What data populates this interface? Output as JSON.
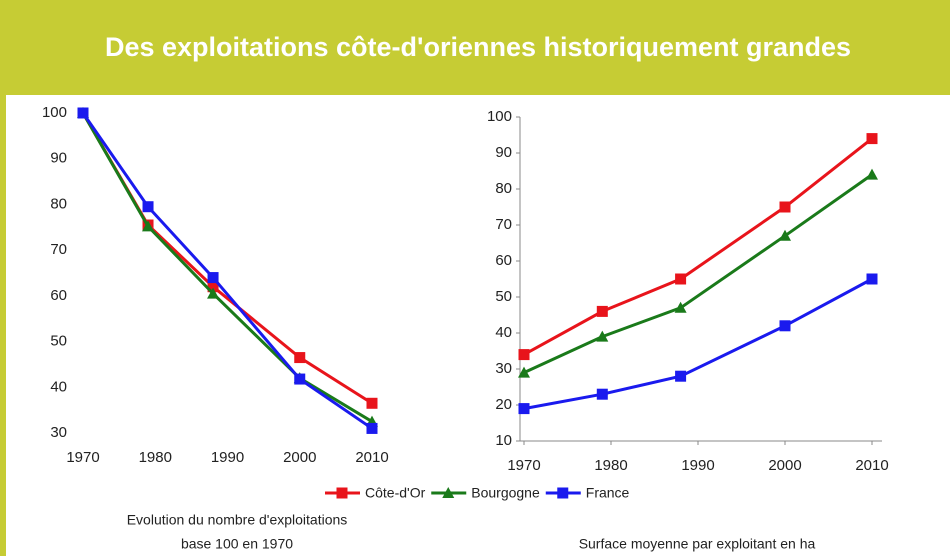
{
  "header": {
    "title": "Des exploitations côte-d'oriennes historiquement grandes"
  },
  "chart_data": [
    {
      "type": "line",
      "caption": [
        "Evolution du nombre d'exploitations",
        "base 100 en 1970"
      ],
      "x": [
        1970,
        1979,
        1988,
        2000,
        2010
      ],
      "xlim": [
        1970,
        2010
      ],
      "xticks": [
        1970,
        1980,
        1990,
        2000,
        2010
      ],
      "ylim": [
        30,
        100
      ],
      "yticks": [
        30,
        40,
        50,
        60,
        70,
        80,
        90,
        100
      ],
      "series": [
        {
          "name": "Côte-d'Or",
          "color": "#e8141b",
          "marker": "square",
          "values": [
            100,
            75.5,
            62,
            46.5,
            36.5
          ]
        },
        {
          "name": "Bourgogne",
          "color": "#1a7a1a",
          "marker": "triangle",
          "values": [
            100,
            75.2,
            60.5,
            42,
            32.5
          ]
        },
        {
          "name": "France",
          "color": "#1a1aee",
          "marker": "square",
          "values": [
            100,
            79.5,
            64,
            41.8,
            31
          ]
        }
      ]
    },
    {
      "type": "line",
      "caption": [
        "Surface moyenne par exploitant en ha"
      ],
      "x": [
        1970,
        1979,
        1988,
        2000,
        2010
      ],
      "xlim": [
        1970,
        2010
      ],
      "xticks": [
        1970,
        1980,
        1990,
        2000,
        2010
      ],
      "ylim": [
        10,
        100
      ],
      "yticks": [
        10,
        20,
        30,
        40,
        50,
        60,
        70,
        80,
        90,
        100
      ],
      "series": [
        {
          "color": "#e8141b",
          "marker": "square",
          "values": [
            34,
            46,
            55,
            75,
            94
          ]
        },
        {
          "color": "#1a7a1a",
          "marker": "triangle",
          "values": [
            29,
            39,
            47,
            67,
            84
          ]
        },
        {
          "color": "#1a1aee",
          "marker": "square",
          "values": [
            19,
            23,
            28,
            42,
            55
          ]
        }
      ]
    }
  ]
}
